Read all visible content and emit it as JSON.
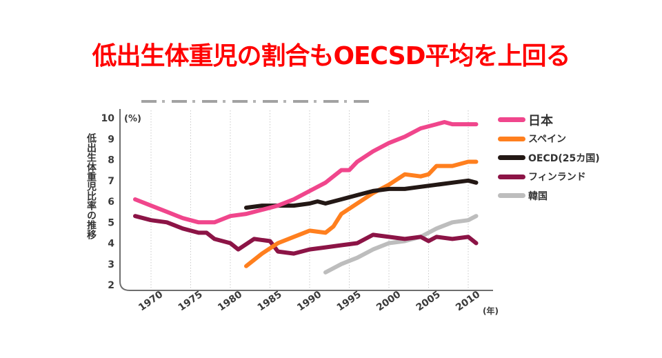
{
  "headline": "低出生体重児の割合もOECSD平均を上回る",
  "chart_data": {
    "type": "line",
    "title": "低出生体重児の割合もOECSD平均を上回る",
    "xlabel": "(年)",
    "ylabel": "低出生体重児比率の推移",
    "y_unit_label": "(%)",
    "ylim": [
      2,
      10
    ],
    "xlim": [
      1968,
      2011
    ],
    "yticks": [
      2,
      3,
      4,
      5,
      6,
      7,
      8,
      9,
      10
    ],
    "xticks": [
      1970,
      1975,
      1980,
      1985,
      1990,
      1995,
      2000,
      2005,
      2010
    ],
    "grid": "vertical dotted",
    "legend_position": "right",
    "series": [
      {
        "name": "日本",
        "color": "#F0468C",
        "x": [
          1968,
          1970,
          1972,
          1974,
          1976,
          1978,
          1980,
          1982,
          1984,
          1986,
          1988,
          1990,
          1992,
          1994,
          1995,
          1996,
          1998,
          2000,
          2002,
          2004,
          2006,
          2007,
          2008,
          2010,
          2011
        ],
        "values": [
          6.1,
          5.8,
          5.5,
          5.2,
          5.0,
          5.0,
          5.3,
          5.4,
          5.6,
          5.8,
          6.1,
          6.5,
          6.9,
          7.5,
          7.5,
          7.9,
          8.4,
          8.8,
          9.1,
          9.5,
          9.7,
          9.8,
          9.7,
          9.7,
          9.7
        ]
      },
      {
        "name": "スペイン",
        "color": "#FF7F1E",
        "x": [
          1982,
          1984,
          1986,
          1988,
          1990,
          1992,
          1993,
          1994,
          1996,
          1998,
          2000,
          2002,
          2004,
          2005,
          2006,
          2008,
          2010,
          2011
        ],
        "values": [
          2.9,
          3.5,
          4.0,
          4.3,
          4.6,
          4.5,
          4.8,
          5.4,
          5.9,
          6.4,
          6.8,
          7.3,
          7.2,
          7.3,
          7.7,
          7.7,
          7.9,
          7.9
        ]
      },
      {
        "name": "OECD(25カ国)",
        "color": "#231815",
        "x": [
          1982,
          1984,
          1986,
          1988,
          1990,
          1991,
          1992,
          1994,
          1996,
          1998,
          2000,
          2002,
          2004,
          2006,
          2008,
          2010,
          2011
        ],
        "values": [
          5.7,
          5.8,
          5.8,
          5.8,
          5.9,
          6.0,
          5.9,
          6.1,
          6.3,
          6.5,
          6.6,
          6.6,
          6.7,
          6.8,
          6.9,
          7.0,
          6.9
        ]
      },
      {
        "name": "フィンランド",
        "color": "#8C1446",
        "x": [
          1968,
          1970,
          1972,
          1974,
          1976,
          1977,
          1978,
          1980,
          1981,
          1983,
          1985,
          1986,
          1988,
          1990,
          1992,
          1994,
          1996,
          1998,
          2000,
          2002,
          2004,
          2005,
          2006,
          2008,
          2010,
          2011
        ],
        "values": [
          5.3,
          5.1,
          5.0,
          4.7,
          4.5,
          4.5,
          4.2,
          4.0,
          3.7,
          4.2,
          4.1,
          3.6,
          3.5,
          3.7,
          3.8,
          3.9,
          4.0,
          4.4,
          4.3,
          4.2,
          4.3,
          4.1,
          4.3,
          4.2,
          4.3,
          4.0
        ]
      },
      {
        "name": "韓国",
        "color": "#BDBDBD",
        "x": [
          1992,
          1994,
          1996,
          1998,
          2000,
          2002,
          2004,
          2006,
          2008,
          2010,
          2011
        ],
        "values": [
          2.6,
          3.0,
          3.3,
          3.7,
          4.0,
          4.1,
          4.3,
          4.7,
          5.0,
          5.1,
          5.3
        ]
      }
    ]
  }
}
